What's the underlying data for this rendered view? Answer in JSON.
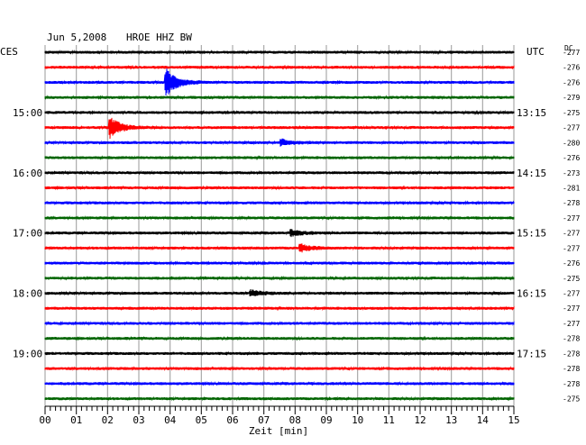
{
  "header": {
    "date": "Jun 5,2008",
    "station": "HROE HHZ BW",
    "left_zone": "CES",
    "right_zone": "UTC",
    "dc_label": "DC"
  },
  "chart_data": {
    "type": "line",
    "title": "Jun 5,2008   HROE HHZ BW",
    "xlabel": "Zeit [min]",
    "xlim": [
      0,
      15
    ],
    "x_ticks": [
      "00",
      "01",
      "02",
      "03",
      "04",
      "05",
      "06",
      "07",
      "08",
      "09",
      "10",
      "11",
      "12",
      "13",
      "14",
      "15"
    ],
    "left_time_labels": [
      "15:00",
      "16:00",
      "17:00",
      "18:00",
      "19:00"
    ],
    "right_time_labels": [
      "13:15",
      "14:15",
      "15:15",
      "16:15",
      "17:15"
    ],
    "label_every_traces": 4,
    "label_first_trace": 4,
    "trace_colors": [
      "#000000",
      "#ff0000",
      "#0000ff",
      "#006400"
    ],
    "dc_offsets": [
      -277,
      -276,
      -276,
      -279,
      -275,
      -277,
      -280,
      -276,
      -273,
      -281,
      -278,
      -277,
      -277,
      -277,
      -276,
      -275,
      -277,
      -277,
      -277,
      -278,
      -278,
      -278,
      -278,
      -275
    ],
    "events": [
      {
        "trace": 2,
        "minute": 3.9,
        "amplitude": 14
      },
      {
        "trace": 5,
        "minute": 2.1,
        "amplitude": 11
      },
      {
        "trace": 6,
        "minute": 7.6,
        "amplitude": 3
      },
      {
        "trace": 12,
        "minute": 7.9,
        "amplitude": 3
      },
      {
        "trace": 13,
        "minute": 8.2,
        "amplitude": 4
      },
      {
        "trace": 16,
        "minute": 6.6,
        "amplitude": 3
      }
    ],
    "grid": true
  }
}
